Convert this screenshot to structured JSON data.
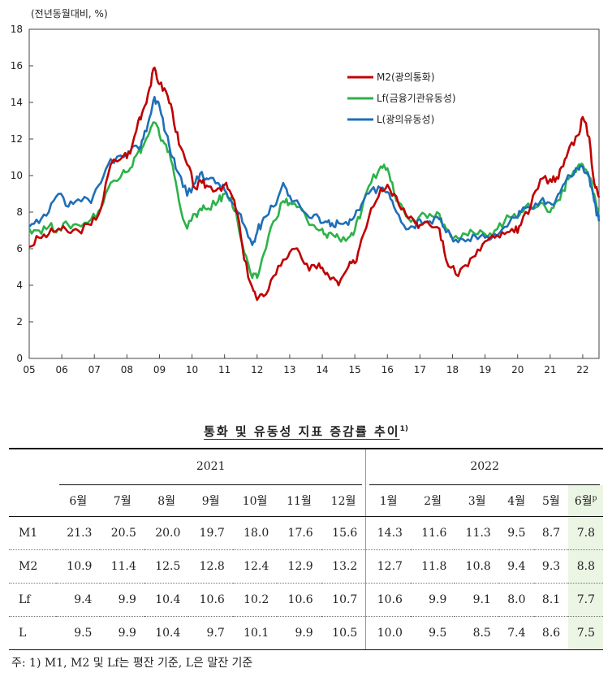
{
  "chart_data": {
    "type": "line",
    "ylabel": "(전년동월대비, %)",
    "ylim": [
      0,
      18
    ],
    "yticks": [
      0,
      2,
      4,
      6,
      8,
      10,
      12,
      14,
      16,
      18
    ],
    "xlim": [
      2005.0,
      2022.5
    ],
    "xtick_labels": [
      "05",
      "06",
      "07",
      "08",
      "09",
      "10",
      "11",
      "12",
      "13",
      "14",
      "15",
      "16",
      "17",
      "18",
      "19",
      "20",
      "21",
      "22"
    ],
    "legend_position": "top-right",
    "series": [
      {
        "name": "M2(광의통화)",
        "color": "#c00000",
        "points": [
          [
            2005.0,
            6.1
          ],
          [
            2005.3,
            6.6
          ],
          [
            2005.6,
            6.8
          ],
          [
            2005.9,
            7.1
          ],
          [
            2006.2,
            6.9
          ],
          [
            2006.5,
            7.0
          ],
          [
            2006.9,
            7.3
          ],
          [
            2007.2,
            8.2
          ],
          [
            2007.5,
            10.6
          ],
          [
            2007.9,
            11.1
          ],
          [
            2008.1,
            11.2
          ],
          [
            2008.35,
            13.0
          ],
          [
            2008.5,
            13.6
          ],
          [
            2008.7,
            14.8
          ],
          [
            2008.85,
            15.9
          ],
          [
            2009.0,
            15.0
          ],
          [
            2009.2,
            14.6
          ],
          [
            2009.4,
            13.5
          ],
          [
            2009.6,
            11.7
          ],
          [
            2009.85,
            10.6
          ],
          [
            2010.1,
            9.3
          ],
          [
            2010.3,
            9.6
          ],
          [
            2010.5,
            9.4
          ],
          [
            2010.8,
            9.3
          ],
          [
            2011.0,
            9.5
          ],
          [
            2011.2,
            9.0
          ],
          [
            2011.4,
            7.9
          ],
          [
            2011.6,
            5.4
          ],
          [
            2011.85,
            3.9
          ],
          [
            2012.0,
            3.2
          ],
          [
            2012.2,
            3.4
          ],
          [
            2012.5,
            4.5
          ],
          [
            2012.8,
            5.4
          ],
          [
            2013.0,
            5.8
          ],
          [
            2013.3,
            5.8
          ],
          [
            2013.6,
            4.8
          ],
          [
            2013.9,
            5.2
          ],
          [
            2014.1,
            4.6
          ],
          [
            2014.3,
            4.4
          ],
          [
            2014.5,
            4.0
          ],
          [
            2014.8,
            5.0
          ],
          [
            2015.0,
            5.2
          ],
          [
            2015.2,
            6.5
          ],
          [
            2015.5,
            8.2
          ],
          [
            2015.8,
            9.3
          ],
          [
            2016.0,
            9.5
          ],
          [
            2016.2,
            9.0
          ],
          [
            2016.5,
            8.2
          ],
          [
            2016.8,
            7.6
          ],
          [
            2017.0,
            7.3
          ],
          [
            2017.3,
            7.3
          ],
          [
            2017.6,
            7.1
          ],
          [
            2017.8,
            5.4
          ],
          [
            2018.1,
            4.6
          ],
          [
            2018.4,
            5.1
          ],
          [
            2018.7,
            5.6
          ],
          [
            2019.0,
            6.4
          ],
          [
            2019.3,
            6.6
          ],
          [
            2019.6,
            6.8
          ],
          [
            2019.9,
            6.9
          ],
          [
            2020.1,
            7.3
          ],
          [
            2020.4,
            8.3
          ],
          [
            2020.7,
            9.8
          ],
          [
            2021.0,
            9.8
          ],
          [
            2021.2,
            9.9
          ],
          [
            2021.4,
            10.5
          ],
          [
            2021.6,
            11.6
          ],
          [
            2021.85,
            12.2
          ],
          [
            2022.0,
            13.2
          ],
          [
            2022.2,
            12.1
          ],
          [
            2022.35,
            9.6
          ],
          [
            2022.5,
            8.8
          ]
        ]
      },
      {
        "name": "Lf(금융기관유동성)",
        "color": "#2db24a",
        "points": [
          [
            2005.0,
            7.1
          ],
          [
            2005.3,
            7.0
          ],
          [
            2005.6,
            7.2
          ],
          [
            2005.9,
            7.1
          ],
          [
            2006.2,
            7.3
          ],
          [
            2006.5,
            7.3
          ],
          [
            2006.9,
            7.6
          ],
          [
            2007.2,
            8.2
          ],
          [
            2007.5,
            9.6
          ],
          [
            2007.9,
            10.3
          ],
          [
            2008.1,
            10.4
          ],
          [
            2008.35,
            11.3
          ],
          [
            2008.5,
            11.6
          ],
          [
            2008.7,
            12.4
          ],
          [
            2008.85,
            12.9
          ],
          [
            2009.0,
            12.2
          ],
          [
            2009.2,
            11.7
          ],
          [
            2009.4,
            10.6
          ],
          [
            2009.6,
            8.6
          ],
          [
            2009.85,
            7.1
          ],
          [
            2010.1,
            7.9
          ],
          [
            2010.3,
            8.1
          ],
          [
            2010.5,
            8.2
          ],
          [
            2010.8,
            8.6
          ],
          [
            2011.0,
            9.0
          ],
          [
            2011.2,
            8.8
          ],
          [
            2011.4,
            7.5
          ],
          [
            2011.6,
            5.8
          ],
          [
            2011.85,
            4.4
          ],
          [
            2012.0,
            4.4
          ],
          [
            2012.2,
            5.7
          ],
          [
            2012.5,
            7.5
          ],
          [
            2012.8,
            8.6
          ],
          [
            2013.0,
            8.5
          ],
          [
            2013.3,
            8.3
          ],
          [
            2013.6,
            7.3
          ],
          [
            2013.9,
            7.0
          ],
          [
            2014.1,
            6.8
          ],
          [
            2014.3,
            6.8
          ],
          [
            2014.5,
            6.6
          ],
          [
            2014.8,
            6.6
          ],
          [
            2015.0,
            7.0
          ],
          [
            2015.2,
            8.0
          ],
          [
            2015.5,
            9.6
          ],
          [
            2015.8,
            10.5
          ],
          [
            2016.0,
            10.4
          ],
          [
            2016.2,
            9.1
          ],
          [
            2016.5,
            8.1
          ],
          [
            2016.8,
            7.6
          ],
          [
            2017.0,
            7.8
          ],
          [
            2017.3,
            7.9
          ],
          [
            2017.6,
            7.9
          ],
          [
            2017.8,
            7.1
          ],
          [
            2018.1,
            6.7
          ],
          [
            2018.4,
            6.8
          ],
          [
            2018.7,
            6.8
          ],
          [
            2019.0,
            6.8
          ],
          [
            2019.3,
            7.0
          ],
          [
            2019.6,
            7.5
          ],
          [
            2019.9,
            7.9
          ],
          [
            2020.1,
            8.0
          ],
          [
            2020.4,
            8.3
          ],
          [
            2020.7,
            8.5
          ],
          [
            2021.0,
            8.0
          ],
          [
            2021.2,
            8.6
          ],
          [
            2021.4,
            9.2
          ],
          [
            2021.6,
            9.9
          ],
          [
            2021.85,
            10.5
          ],
          [
            2022.0,
            10.6
          ],
          [
            2022.2,
            9.9
          ],
          [
            2022.35,
            9.0
          ],
          [
            2022.5,
            7.7
          ]
        ]
      },
      {
        "name": "L(광의유동성)",
        "color": "#1f6fb8",
        "points": [
          [
            2005.0,
            7.2
          ],
          [
            2005.3,
            7.4
          ],
          [
            2005.6,
            8.0
          ],
          [
            2005.9,
            9.0
          ],
          [
            2006.2,
            8.3
          ],
          [
            2006.5,
            8.7
          ],
          [
            2006.9,
            8.5
          ],
          [
            2007.2,
            9.6
          ],
          [
            2007.5,
            10.9
          ],
          [
            2007.9,
            11.0
          ],
          [
            2008.1,
            11.3
          ],
          [
            2008.35,
            11.5
          ],
          [
            2008.5,
            12.0
          ],
          [
            2008.7,
            13.2
          ],
          [
            2008.85,
            14.3
          ],
          [
            2009.0,
            13.8
          ],
          [
            2009.2,
            12.3
          ],
          [
            2009.4,
            11.0
          ],
          [
            2009.6,
            10.1
          ],
          [
            2009.85,
            8.9
          ],
          [
            2010.1,
            9.6
          ],
          [
            2010.3,
            10.2
          ],
          [
            2010.5,
            9.8
          ],
          [
            2010.8,
            9.6
          ],
          [
            2011.0,
            9.2
          ],
          [
            2011.2,
            8.6
          ],
          [
            2011.4,
            8.0
          ],
          [
            2011.6,
            7.3
          ],
          [
            2011.85,
            6.2
          ],
          [
            2012.0,
            6.9
          ],
          [
            2012.2,
            7.7
          ],
          [
            2012.5,
            8.3
          ],
          [
            2012.8,
            9.6
          ],
          [
            2013.0,
            8.9
          ],
          [
            2013.3,
            8.4
          ],
          [
            2013.6,
            7.7
          ],
          [
            2013.9,
            7.7
          ],
          [
            2014.1,
            7.5
          ],
          [
            2014.3,
            7.4
          ],
          [
            2014.5,
            7.4
          ],
          [
            2014.8,
            7.3
          ],
          [
            2015.0,
            7.8
          ],
          [
            2015.2,
            8.4
          ],
          [
            2015.5,
            9.2
          ],
          [
            2015.8,
            9.3
          ],
          [
            2016.0,
            9.1
          ],
          [
            2016.2,
            8.3
          ],
          [
            2016.5,
            7.3
          ],
          [
            2016.8,
            7.2
          ],
          [
            2017.0,
            7.6
          ],
          [
            2017.3,
            7.5
          ],
          [
            2017.6,
            7.6
          ],
          [
            2017.8,
            6.9
          ],
          [
            2018.1,
            6.5
          ],
          [
            2018.4,
            6.4
          ],
          [
            2018.7,
            6.7
          ],
          [
            2019.0,
            6.6
          ],
          [
            2019.3,
            6.8
          ],
          [
            2019.6,
            7.2
          ],
          [
            2019.9,
            7.7
          ],
          [
            2020.1,
            8.0
          ],
          [
            2020.4,
            8.2
          ],
          [
            2020.7,
            8.6
          ],
          [
            2021.0,
            8.5
          ],
          [
            2021.2,
            8.8
          ],
          [
            2021.4,
            9.5
          ],
          [
            2021.6,
            10.0
          ],
          [
            2021.85,
            10.4
          ],
          [
            2022.0,
            10.5
          ],
          [
            2022.2,
            9.9
          ],
          [
            2022.35,
            8.6
          ],
          [
            2022.5,
            7.5
          ]
        ]
      }
    ]
  },
  "table": {
    "title": "통화 및 유동성 지표 증감률 추이",
    "title_sup": "1)",
    "years": [
      "2021",
      "2022"
    ],
    "months_2021": [
      "6월",
      "7월",
      "8월",
      "9월",
      "10월",
      "11월",
      "12월"
    ],
    "months_2022": [
      "1월",
      "2월",
      "3월",
      "4월",
      "5월",
      "6월"
    ],
    "prelim_mark": "p",
    "rows": [
      {
        "label": "M1",
        "v2021": [
          "21.3",
          "20.5",
          "20.0",
          "19.7",
          "18.0",
          "17.6",
          "15.6"
        ],
        "v2022": [
          "14.3",
          "11.6",
          "11.3",
          "9.5",
          "8.7",
          "7.8"
        ]
      },
      {
        "label": "M2",
        "v2021": [
          "10.9",
          "11.4",
          "12.5",
          "12.8",
          "12.4",
          "12.9",
          "13.2"
        ],
        "v2022": [
          "12.7",
          "11.8",
          "10.8",
          "9.4",
          "9.3",
          "8.8"
        ]
      },
      {
        "label": "Lf",
        "v2021": [
          "9.4",
          "9.9",
          "10.4",
          "10.6",
          "10.2",
          "10.6",
          "10.7"
        ],
        "v2022": [
          "10.6",
          "9.9",
          "9.1",
          "8.0",
          "8.1",
          "7.7"
        ]
      },
      {
        "label": "L",
        "v2021": [
          "9.5",
          "9.9",
          "10.4",
          "9.7",
          "10.1",
          "9.9",
          "10.5"
        ],
        "v2022": [
          "10.0",
          "9.5",
          "8.5",
          "7.4",
          "8.6",
          "7.5"
        ]
      }
    ]
  },
  "footnote": "주: 1) M1, M2 및 Lf는 평잔 기준, L은 말잔 기준",
  "highlight_color": "#eaf5e3"
}
